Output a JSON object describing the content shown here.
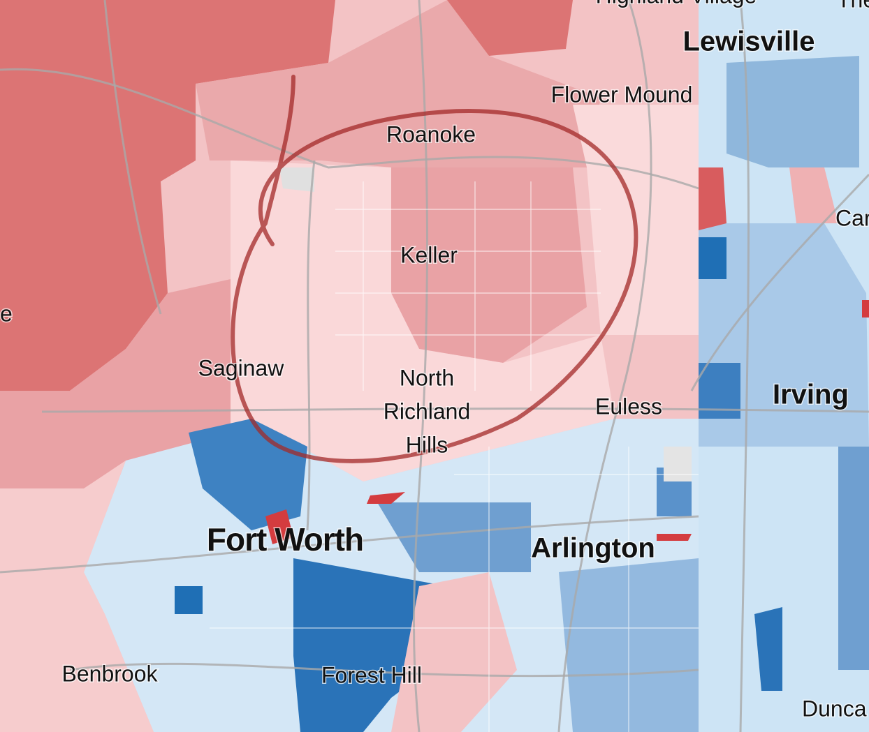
{
  "labels": {
    "highland_village": "Highland Village",
    "the": "The",
    "lewisville": "Lewisville",
    "flower_mound": "Flower Mound",
    "roanoke": "Roanoke",
    "keller": "Keller",
    "saginaw": "Saginaw",
    "north_richland_hills": [
      "North",
      "Richland",
      "Hills"
    ],
    "euless": "Euless",
    "irving": "Irving",
    "car": "Car",
    "e": "e",
    "fort_worth": "Fort Worth",
    "arlington": "Arlington",
    "benbrook": "Benbrook",
    "forest_hill": "Forest Hill",
    "dunca": "Dunca"
  }
}
